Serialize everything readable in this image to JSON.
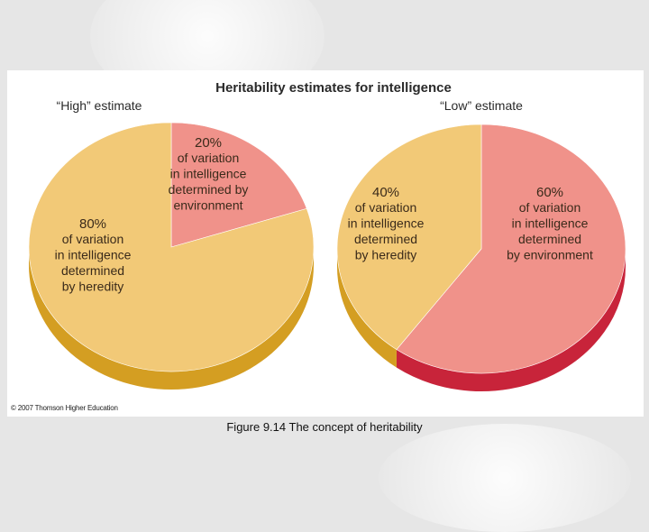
{
  "chart_data": [
    {
      "type": "pie",
      "title": "Heritability estimates for intelligence",
      "subtitle": "“High” estimate",
      "slices": [
        {
          "value": 20,
          "percent_label": "20%",
          "description": [
            "of variation",
            "in intelligence",
            "determined by",
            "environment"
          ],
          "color": "#f0928a"
        },
        {
          "value": 80,
          "percent_label": "80%",
          "description": [
            "of variation",
            "in intelligence",
            "determined",
            "by heredity"
          ],
          "color": "#f2c977"
        }
      ]
    },
    {
      "type": "pie",
      "subtitle": "“Low” estimate",
      "slices": [
        {
          "value": 60,
          "percent_label": "60%",
          "description": [
            "of variation",
            "in intelligence",
            "determined",
            "by environment"
          ],
          "color": "#f0928a"
        },
        {
          "value": 40,
          "percent_label": "40%",
          "description": [
            "of variation",
            "in intelligence",
            "determined",
            "by heredity"
          ],
          "color": "#f2c977"
        }
      ]
    }
  ],
  "colors": {
    "environment": "#f0928a",
    "environment_side": "#c8243a",
    "heredity": "#f2c977",
    "heredity_side": "#d49e22",
    "title_text": "#2a2a2a",
    "label_text": "#3a2a1a"
  },
  "copyright": "© 2007 Thomson Higher Education",
  "caption": "Figure 9.14  The concept of heritability"
}
